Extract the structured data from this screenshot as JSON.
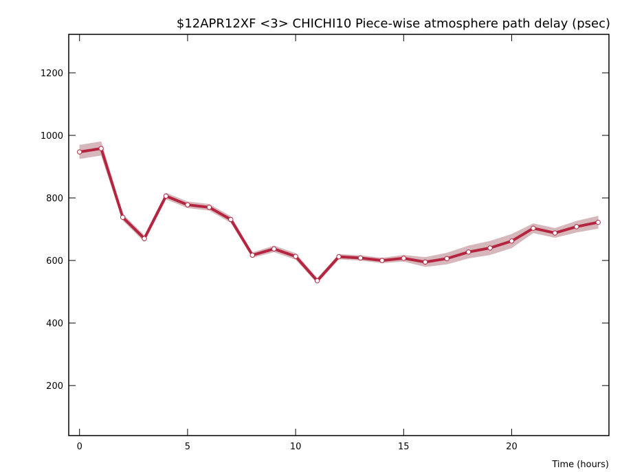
{
  "chart_data": {
    "type": "line",
    "title": "$12APR12XF <3>  CHICHI10  Piece-wise atmosphere path delay (psec)",
    "x_label": "Time (hours)",
    "x": [
      0,
      1,
      2,
      3,
      4,
      5,
      6,
      7,
      8,
      9,
      10,
      11,
      12,
      13,
      14,
      15,
      16,
      17,
      18,
      19,
      20,
      21,
      22,
      23,
      24
    ],
    "series": [
      {
        "color": "#b5253f",
        "band_color": "#d6b8bc",
        "values": [
          947,
          958,
          738,
          670,
          806,
          778,
          770,
          731,
          617,
          637,
          613,
          535,
          612,
          608,
          600,
          607,
          595,
          606,
          627,
          640,
          662,
          703,
          688,
          708,
          722
        ],
        "errors": [
          22,
          22,
          10,
          10,
          10,
          10,
          10,
          10,
          8,
          10,
          10,
          8,
          8,
          8,
          8,
          10,
          15,
          18,
          20,
          22,
          22,
          15,
          15,
          18,
          20
        ]
      }
    ],
    "xlim": [
      -0.5,
      24.5
    ],
    "xticks": [
      0,
      5,
      10,
      15,
      20
    ],
    "ylim": [
      40,
      1323
    ],
    "yticks": [
      200,
      400,
      600,
      800,
      1000,
      1200
    ]
  }
}
